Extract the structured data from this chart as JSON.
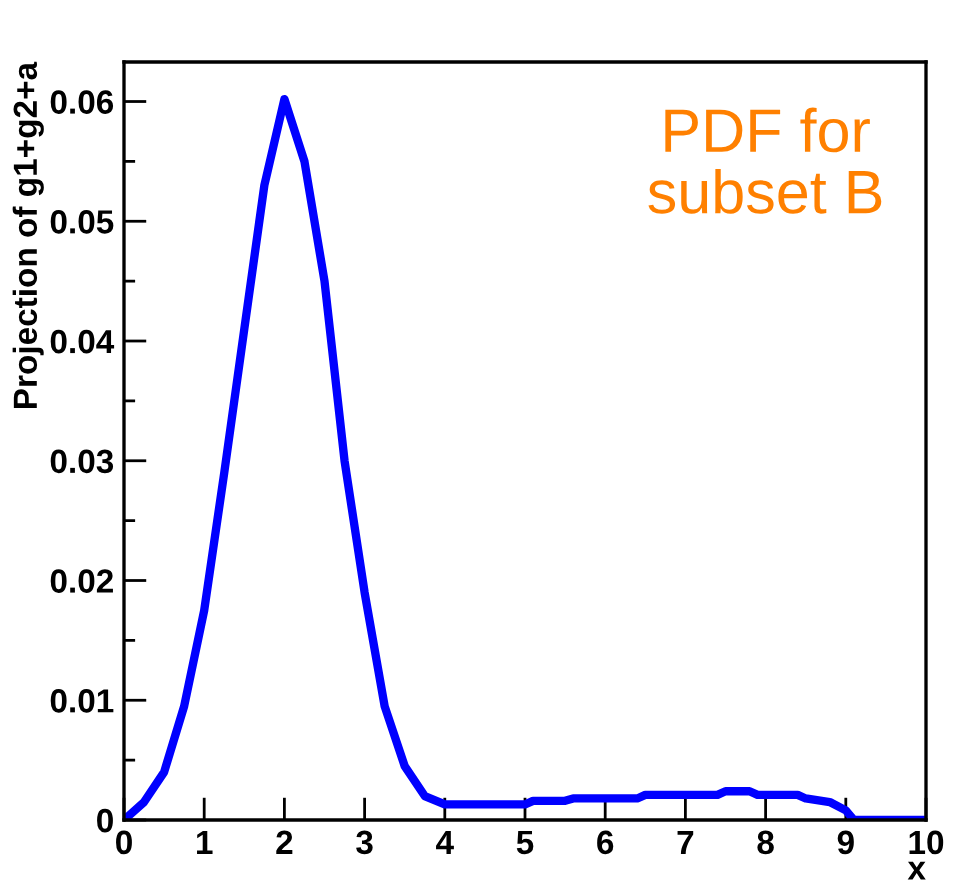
{
  "chart_data": {
    "type": "line",
    "xlabel": "x",
    "ylabel": "Projection of g1+g2+a",
    "annotations": [
      "PDF for\nsubset B"
    ],
    "x": [
      0,
      0.25,
      0.5,
      0.75,
      1.0,
      1.25,
      1.5,
      1.75,
      2.0,
      2.25,
      2.5,
      2.75,
      3.0,
      3.25,
      3.5,
      3.75,
      4.0,
      4.5,
      5.0,
      5.1,
      5.5,
      5.6,
      6.4,
      6.5,
      7.4,
      7.5,
      7.8,
      7.9,
      8.4,
      8.5,
      8.8,
      9.0,
      9.1,
      10
    ],
    "series": [
      {
        "color": "#0000ff",
        "values": [
          0,
          0.0015,
          0.004,
          0.0095,
          0.0175,
          0.029,
          0.041,
          0.053,
          0.0602,
          0.055,
          0.045,
          0.03,
          0.019,
          0.0095,
          0.0045,
          0.002,
          0.0013,
          0.0013,
          0.0013,
          0.0016,
          0.0016,
          0.0018,
          0.0018,
          0.0021,
          0.0021,
          0.0024,
          0.0024,
          0.0021,
          0.0021,
          0.0018,
          0.0015,
          0.0008,
          0,
          0
        ]
      }
    ],
    "xlim": [
      0,
      10
    ],
    "ylim": [
      0,
      0.0633
    ],
    "xticks": [
      0,
      1,
      2,
      3,
      4,
      5,
      6,
      7,
      8,
      9,
      10
    ],
    "yticks": [
      0,
      {
        "value": 0.005,
        "label": null
      },
      0.01,
      {
        "value": 0.015,
        "label": null
      },
      0.02,
      {
        "value": 0.025,
        "label": null
      },
      0.03,
      {
        "value": 0.035,
        "label": null
      },
      0.04,
      {
        "value": 0.045,
        "label": null
      },
      0.05,
      {
        "value": 0.055,
        "label": null
      },
      0.06
    ],
    "grid": false,
    "legend": false,
    "marker": "none",
    "line_style": "solid"
  }
}
